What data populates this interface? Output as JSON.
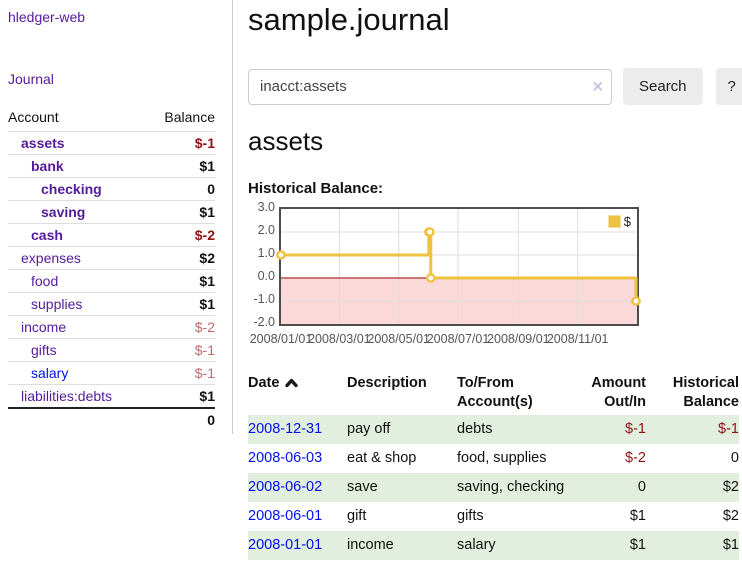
{
  "app": {
    "brand": "hledger-web",
    "nav_journal": "Journal"
  },
  "colors": {
    "link_purple": "#551a9b",
    "link_blue": "#0010ee",
    "negative_strong": "#8e1313",
    "negative_soft": "#bd6d6e",
    "row_stripe_green": "#e2eede",
    "series_gold": "#edc240",
    "negative_region_pink": "#fcd9d9",
    "zero_line_red": "#990000"
  },
  "sidebar": {
    "header": {
      "account": "Account",
      "balance": "Balance"
    },
    "accounts": [
      {
        "name": "assets",
        "balance": "$-1",
        "indent": 1,
        "in_focus": true,
        "balance_style": "neg-strong"
      },
      {
        "name": "bank",
        "balance": "$1",
        "indent": 2,
        "in_focus": true,
        "balance_style": "pos"
      },
      {
        "name": "checking",
        "balance": "0",
        "indent": 3,
        "in_focus": true,
        "balance_style": "pos"
      },
      {
        "name": "saving",
        "balance": "$1",
        "indent": 3,
        "in_focus": true,
        "balance_style": "pos"
      },
      {
        "name": "cash",
        "balance": "$-2",
        "indent": 2,
        "in_focus": true,
        "balance_style": "neg-strong"
      },
      {
        "name": "expenses",
        "balance": "$2",
        "indent": 1,
        "in_focus": false,
        "balance_style": "pos"
      },
      {
        "name": "food",
        "balance": "$1",
        "indent": 2,
        "in_focus": false,
        "balance_style": "pos"
      },
      {
        "name": "supplies",
        "balance": "$1",
        "indent": 2,
        "in_focus": false,
        "balance_style": "pos"
      },
      {
        "name": "income",
        "balance": "$-2",
        "indent": 1,
        "in_focus": false,
        "balance_style": "neg-soft"
      },
      {
        "name": "gifts",
        "balance": "$-1",
        "indent": 2,
        "in_focus": false,
        "balance_style": "neg-soft"
      },
      {
        "name": "salary",
        "balance": "$-1",
        "indent": 2,
        "in_focus": false,
        "balance_style": "neg-soft",
        "link_color": "blue"
      },
      {
        "name": "liabilities:debts",
        "balance": "$1",
        "indent": 1,
        "in_focus": false,
        "balance_style": "pos"
      }
    ],
    "total": "0"
  },
  "header": {
    "title": "sample.journal"
  },
  "search": {
    "value": "inacct:assets",
    "clear_label": "×",
    "button_label": "Search",
    "help_label": "?"
  },
  "account_page": {
    "title": "assets",
    "chart_label": "Historical Balance:"
  },
  "chart_data": {
    "type": "line",
    "step": true,
    "title": "Historical Balance:",
    "xlim": [
      "2008-01-01",
      "2009-01-01"
    ],
    "ylim": [
      -2,
      3
    ],
    "x_ticks": [
      "2008/01/01",
      "2008/03/01",
      "2008/05/01",
      "2008/07/01",
      "2008/09/01",
      "2008/11/01"
    ],
    "y_ticks": [
      3.0,
      2.0,
      1.0,
      0.0,
      -1.0,
      -2.0
    ],
    "legend": [
      {
        "label": "$",
        "color": "#edc240"
      }
    ],
    "series": [
      {
        "name": "$",
        "color": "#edc240",
        "points": [
          [
            "2008-01-01",
            1
          ],
          [
            "2008-06-01",
            2
          ],
          [
            "2008-06-02",
            2
          ],
          [
            "2008-06-03",
            0
          ],
          [
            "2008-12-31",
            -1
          ]
        ]
      }
    ],
    "negative_region_below": 0,
    "grid": true,
    "legend_position": "top-right"
  },
  "register": {
    "columns": [
      {
        "id": "date",
        "lines": [
          "Date"
        ],
        "align": "al",
        "sortable": true
      },
      {
        "id": "description",
        "lines": [
          "Description"
        ],
        "align": "al"
      },
      {
        "id": "accounts",
        "lines": [
          "To/From",
          "Account(s)"
        ],
        "align": "al"
      },
      {
        "id": "amount",
        "lines": [
          "Amount",
          "Out/In"
        ],
        "align": "ar"
      },
      {
        "id": "balance",
        "lines": [
          "Historical",
          "Balance"
        ],
        "align": "ar"
      }
    ],
    "rows": [
      {
        "date": "2008-12-31",
        "description": "pay off",
        "accounts": "debts",
        "amount": "$-1",
        "amount_neg": true,
        "balance": "$-1",
        "balance_neg": true,
        "stripe": true
      },
      {
        "date": "2008-06-03",
        "description": "eat & shop",
        "accounts": "food, supplies",
        "amount": "$-2",
        "amount_neg": true,
        "balance": "0",
        "balance_neg": false,
        "stripe": false
      },
      {
        "date": "2008-06-02",
        "description": "save",
        "accounts": "saving, checking",
        "amount": "0",
        "amount_neg": false,
        "balance": "$2",
        "balance_neg": false,
        "stripe": true
      },
      {
        "date": "2008-06-01",
        "description": "gift",
        "accounts": "gifts",
        "amount": "$1",
        "amount_neg": false,
        "balance": "$2",
        "balance_neg": false,
        "stripe": false
      },
      {
        "date": "2008-01-01",
        "description": "income",
        "accounts": "salary",
        "amount": "$1",
        "amount_neg": false,
        "balance": "$1",
        "balance_neg": false,
        "stripe": true
      }
    ]
  }
}
